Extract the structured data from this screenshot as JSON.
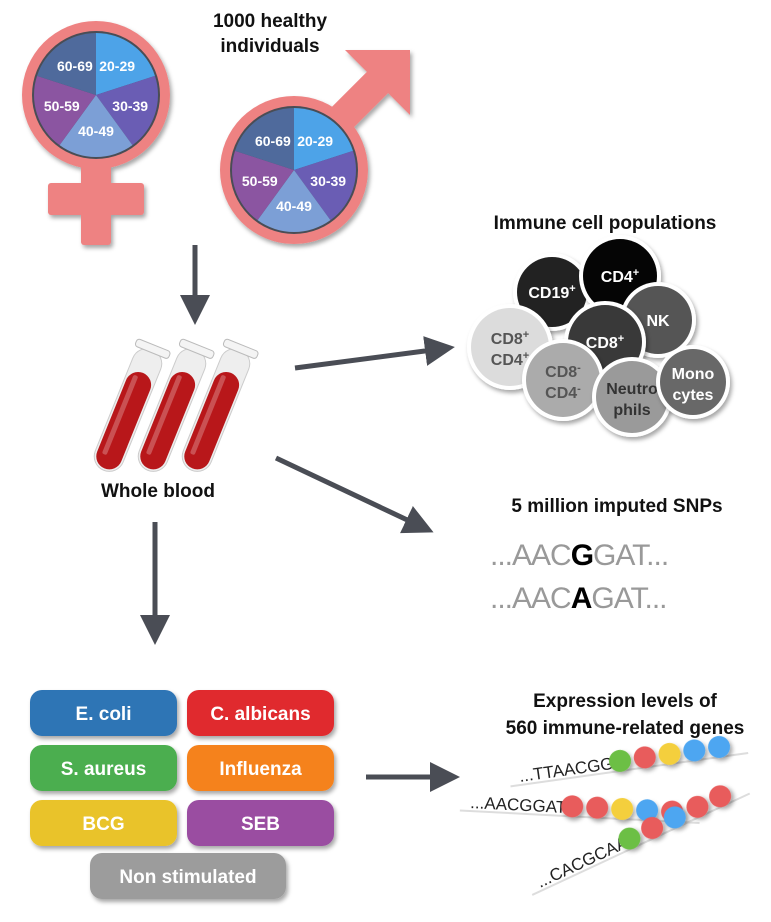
{
  "cohort": {
    "title_line1": "1000 healthy",
    "title_line2": "individuals",
    "age_groups": [
      "20-29",
      "30-39",
      "40-49",
      "50-59",
      "60-69"
    ],
    "age_colors": [
      "#4da3e8",
      "#6a5db4",
      "#7b9fd6",
      "#8b55a1",
      "#4f6b9c"
    ],
    "symbol_color": "#ee8282"
  },
  "blood": {
    "label": "Whole blood",
    "tube_color": "#b8171a"
  },
  "immune_cells": {
    "title": "Immune cell populations",
    "cells": [
      {
        "line1": "CD19",
        "sup1": "+",
        "color": "#222222",
        "text_color": "#ffffff"
      },
      {
        "line1": "CD4",
        "sup1": "+",
        "color": "#050505",
        "text_color": "#ffffff"
      },
      {
        "line1": "NK",
        "color": "#555555",
        "text_color": "#ffffff"
      },
      {
        "line1": "CD8",
        "sup1": "+",
        "line2": "CD4",
        "sup2": "+",
        "color": "#dcdcdc",
        "text_color": "#555555"
      },
      {
        "line1": "CD8",
        "sup1": "+",
        "color": "#393939",
        "text_color": "#ffffff"
      },
      {
        "line1": "CD8",
        "sup1": "-",
        "line2": "CD4",
        "sup2": "-",
        "color": "#ababab",
        "text_color": "#555555"
      },
      {
        "line1": "Neutro",
        "line2": "phils",
        "color": "#9a9a9a",
        "text_color": "#333333"
      },
      {
        "line1": "Mono",
        "line2": "cytes",
        "color": "#686868",
        "text_color": "#ffffff"
      }
    ]
  },
  "snps": {
    "title": "5 million imputed SNPs",
    "seq1": {
      "prefix": "...AAC",
      "variant": "G",
      "suffix": "GAT..."
    },
    "seq2": {
      "prefix": "...AAC",
      "variant": "A",
      "suffix": "GAT..."
    }
  },
  "stimuli": [
    {
      "label": "E. coli",
      "color": "#2f74b5"
    },
    {
      "label": "C. albicans",
      "color": "#e02a2e"
    },
    {
      "label": "S. aureus",
      "color": "#4cae4f"
    },
    {
      "label": "Influenza",
      "color": "#f5821f"
    },
    {
      "label": "BCG",
      "color": "#e9c32b"
    },
    {
      "label": "SEB",
      "color": "#9a4ea1"
    },
    {
      "label": "Non stimulated",
      "color": "#9c9c9c"
    }
  ],
  "expression": {
    "title_line1": "Expression levels of",
    "title_line2": "560 immune-related genes",
    "genes": [
      {
        "seq": "...TTAACGG",
        "dots": [
          "#6cbf45",
          "#e85c5c",
          "#f4cf3c",
          "#4ea6f1",
          "#4ea6f1"
        ]
      },
      {
        "seq": "...AACGGAT",
        "dots": [
          "#e85c5c",
          "#e85c5c",
          "#f4cf3c",
          "#4ea6f1",
          "#e85c5c"
        ]
      },
      {
        "seq": "...CACGCAA",
        "dots": [
          "#6cbf45",
          "#e85c5c",
          "#4ea6f1",
          "#e85c5c",
          "#e85c5c"
        ]
      }
    ]
  }
}
